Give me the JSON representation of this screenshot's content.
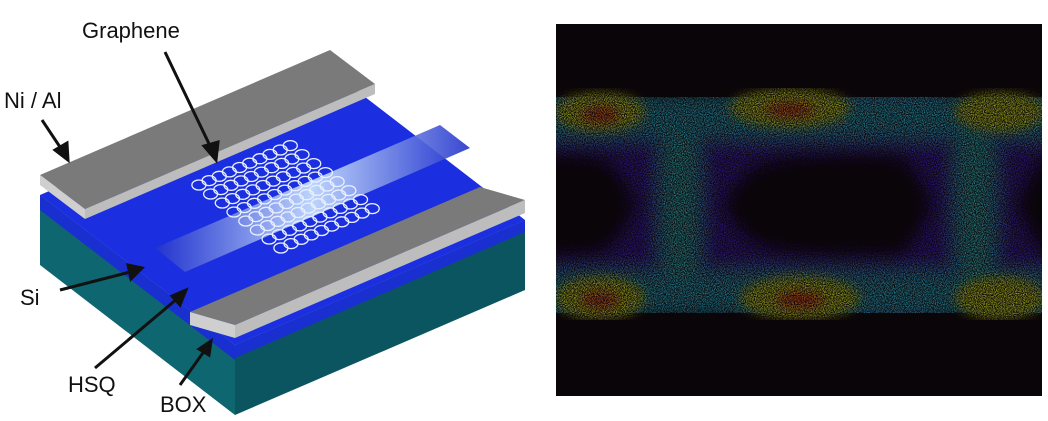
{
  "schematic": {
    "labels": [
      "Graphene",
      "Ni / Al",
      "Si",
      "HSQ",
      "BOX"
    ]
  }
}
